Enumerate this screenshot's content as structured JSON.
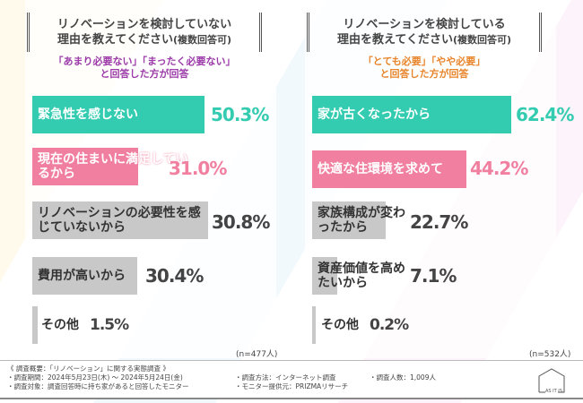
{
  "left": {
    "title_line1": "リノベーションを検討していない",
    "title_line2": "理由を教えてください",
    "title_note": "(複数回答可)",
    "sub_line1": "「あまり必要ない」「まったく必要ない」",
    "sub_line2": "と回答した方が回答",
    "n": "(n=477人)",
    "items": [
      {
        "label": "緊急性を感じない",
        "value": "50.3%"
      },
      {
        "label": "現在の住まいに満足しているから",
        "value": "31.0%"
      },
      {
        "label": "リノベーションの必要性を感じていないから",
        "value": "30.8%"
      },
      {
        "label": "費用が高いから",
        "value": "30.4%"
      },
      {
        "label": "その他",
        "value": "1.5%"
      }
    ]
  },
  "right": {
    "title_line1": "リノベーションを検討している",
    "title_line2": "理由を教えてください",
    "title_note": "(複数回答可)",
    "sub_line1": "「とても必要」「やや必要」",
    "sub_line2": "と回答した方が回答",
    "n": "(n=532人)",
    "items": [
      {
        "label": "家が古くなったから",
        "value": "62.4%"
      },
      {
        "label": "快適な住環境を求めて",
        "value": "44.2%"
      },
      {
        "label": "家族構成が変わったから",
        "value": "22.7%"
      },
      {
        "label": "資産価値を高めたいから",
        "value": "7.1%"
      },
      {
        "label": "その他",
        "value": "0.2%"
      }
    ]
  },
  "colors": {
    "teal": "#33ccb0",
    "pink": "#f07fa0",
    "gray": "#c8c8c8",
    "purple": "#9b3aa8",
    "orange": "#e8842a"
  },
  "footer": {
    "overview": "《 調査概要：「リノベーション」に関する実態調査 》",
    "period": "・調査期間：2024年5月23日(木) ～ 2024年5月24日(金)",
    "target": "・調査対象：調査回答時に持ち家があると回答したモニター",
    "method": "・調査方法：インターネット調査",
    "provider": "・モニター提供元：PRIZMAリサーチ",
    "count": "・調査人数：1,009人",
    "logo": "AS IT IS"
  }
}
